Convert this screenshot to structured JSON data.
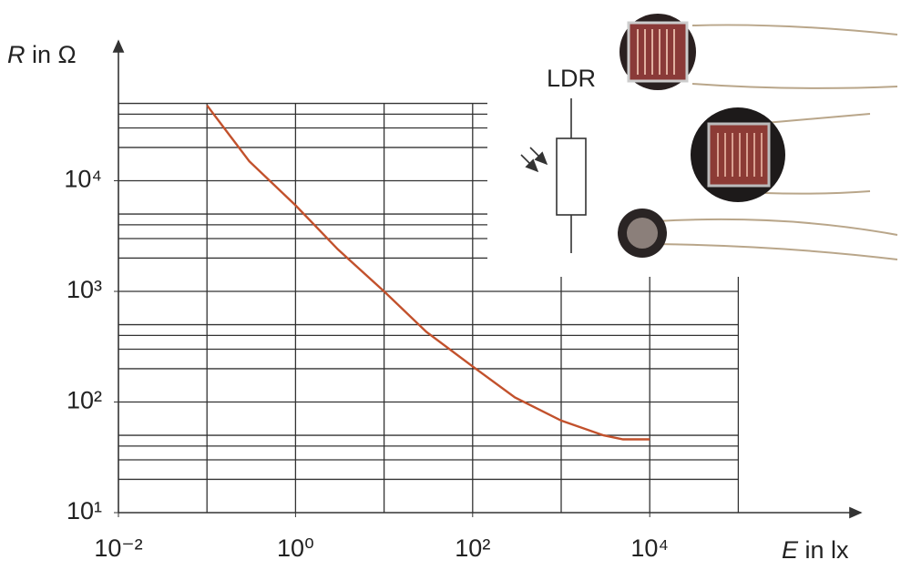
{
  "chart_data": {
    "type": "line",
    "y_label_symbol": "R",
    "y_label_unit": "in Ω",
    "x_label_symbol": "E",
    "x_label_unit": "in lx",
    "log_x": true,
    "log_y": true,
    "grid": true,
    "xlim": [
      0.01,
      100000
    ],
    "ylim": [
      10,
      50000
    ],
    "xticks": [
      {
        "value": 0.01,
        "label": "10⁻²"
      },
      {
        "value": 1,
        "label": "10⁰"
      },
      {
        "value": 100,
        "label": "10²"
      },
      {
        "value": 10000,
        "label": "10⁴"
      }
    ],
    "yticks": [
      {
        "value": 10,
        "label": "10¹"
      },
      {
        "value": 100,
        "label": "10²"
      },
      {
        "value": 1000,
        "label": "10³"
      },
      {
        "value": 10000,
        "label": "10⁴"
      }
    ],
    "x_grid": [
      0.1,
      1,
      10,
      100,
      1000,
      10000,
      100000
    ],
    "y_grid": [
      20,
      30,
      40,
      50,
      100,
      200,
      300,
      400,
      500,
      1000,
      2000,
      3000,
      4000,
      5000,
      10000,
      20000,
      30000,
      40000,
      50000
    ],
    "annotation": "LDR",
    "series": [
      {
        "color": "#c2512c",
        "x": [
          0.1,
          0.3,
          1,
          3,
          10,
          30,
          100,
          300,
          1000,
          3000,
          5000,
          10000
        ],
        "values": [
          48000,
          15000,
          6000,
          2400,
          1000,
          430,
          210,
          110,
          68,
          50,
          46,
          46
        ]
      }
    ]
  }
}
